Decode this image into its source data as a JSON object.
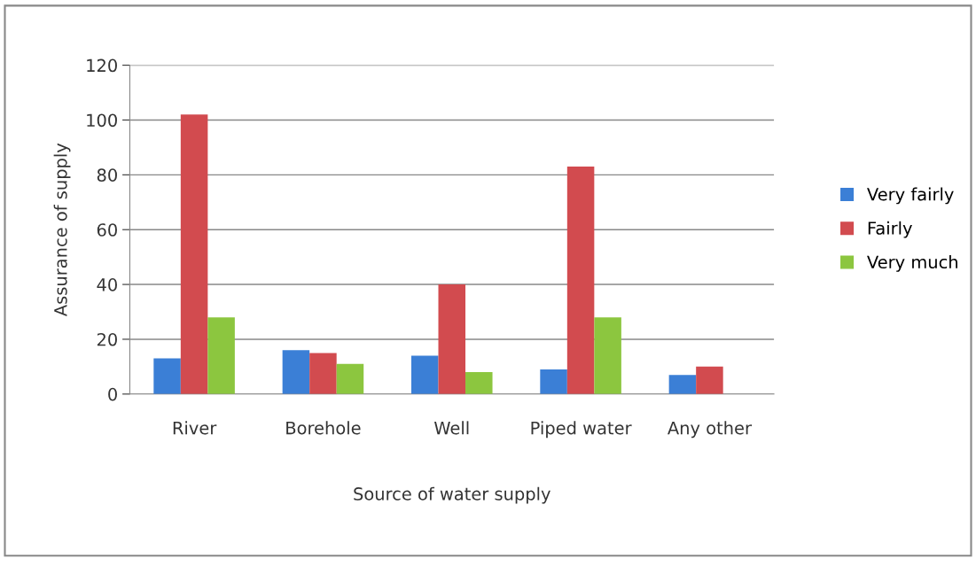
{
  "chart_data": {
    "type": "bar",
    "xlabel": "Source of water supply",
    "ylabel": "Assurance of supply",
    "categories": [
      "River",
      "Borehole",
      "Well",
      "Piped water",
      "Any other"
    ],
    "series": [
      {
        "name": "Very fairly",
        "color": "#3b7fd6",
        "values": [
          13,
          16,
          14,
          9,
          7
        ]
      },
      {
        "name": "Fairly",
        "color": "#d24b4f",
        "values": [
          102,
          15,
          40,
          83,
          10
        ]
      },
      {
        "name": "Very much",
        "color": "#8cc63f",
        "values": [
          28,
          11,
          8,
          28,
          0
        ]
      }
    ],
    "ylim": [
      0,
      120
    ],
    "yticks": [
      0,
      20,
      40,
      60,
      80,
      100,
      120
    ],
    "grid": "y",
    "legend": "right"
  }
}
